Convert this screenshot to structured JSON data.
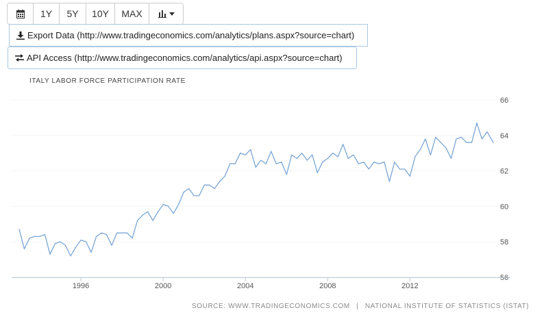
{
  "toolbar": {
    "calendar_icon": "calendar-icon",
    "periods": [
      "1Y",
      "5Y",
      "10Y",
      "MAX"
    ],
    "chart_type_icon": "bar-chart-icon",
    "dropdown_icon": "caret-down-icon"
  },
  "links": {
    "export_label": "Export Data (http://www.tradingeconomics.com/analytics/plans.aspx?source=chart)",
    "api_label": "API Access (http://www.tradingeconomics.com/analytics/api.aspx?source=chart)"
  },
  "footer": {
    "source_site": "SOURCE: WWW.TRADINGECONOMICS.COM",
    "separator": "|",
    "source_agency": "NATIONAL INSTITUTE OF STATISTICS (ISTAT)"
  },
  "colors": {
    "line": "#7aa6d6",
    "grid": "#dfe6ee",
    "axis": "#b8c6d4"
  },
  "chart_data": {
    "type": "line",
    "title": "ITALY LABOR FORCE PARTICIPATION RATE",
    "xlabel": "",
    "ylabel": "",
    "x_ticks": [
      "1996",
      "2000",
      "2004",
      "2008",
      "2012"
    ],
    "y_ticks": [
      56,
      58,
      60,
      62,
      64,
      66
    ],
    "ylim": [
      56,
      66
    ],
    "xlim": [
      1993.0,
      2016.05
    ],
    "y_axis_side": "right",
    "grid": "horizontal",
    "series": [
      {
        "values": [
          [
            1993.0,
            58.7
          ],
          [
            1993.25,
            57.6
          ],
          [
            1993.5,
            58.2
          ],
          [
            1993.75,
            58.3
          ],
          [
            1994.0,
            58.3
          ],
          [
            1994.25,
            58.4
          ],
          [
            1994.5,
            57.3
          ],
          [
            1994.75,
            57.9
          ],
          [
            1995.0,
            58.0
          ],
          [
            1995.25,
            57.8
          ],
          [
            1995.5,
            57.2
          ],
          [
            1995.75,
            57.7
          ],
          [
            1996.0,
            58.1
          ],
          [
            1996.25,
            58.0
          ],
          [
            1996.5,
            57.4
          ],
          [
            1996.75,
            58.3
          ],
          [
            1997.0,
            58.5
          ],
          [
            1997.25,
            58.4
          ],
          [
            1997.5,
            57.8
          ],
          [
            1997.75,
            58.5
          ],
          [
            1998.0,
            58.5
          ],
          [
            1998.25,
            58.5
          ],
          [
            1998.5,
            58.2
          ],
          [
            1998.75,
            59.2
          ],
          [
            1999.0,
            59.5
          ],
          [
            1999.25,
            59.7
          ],
          [
            1999.5,
            59.2
          ],
          [
            1999.75,
            59.7
          ],
          [
            2000.0,
            60.1
          ],
          [
            2000.25,
            60.0
          ],
          [
            2000.5,
            59.6
          ],
          [
            2000.75,
            60.1
          ],
          [
            2001.0,
            60.8
          ],
          [
            2001.25,
            61.0
          ],
          [
            2001.5,
            60.6
          ],
          [
            2001.75,
            60.6
          ],
          [
            2002.0,
            61.2
          ],
          [
            2002.25,
            61.2
          ],
          [
            2002.5,
            61.0
          ],
          [
            2002.75,
            61.4
          ],
          [
            2003.0,
            61.7
          ],
          [
            2003.25,
            62.4
          ],
          [
            2003.5,
            62.4
          ],
          [
            2003.75,
            63.0
          ],
          [
            2004.0,
            62.9
          ],
          [
            2004.25,
            63.2
          ],
          [
            2004.5,
            62.2
          ],
          [
            2004.75,
            62.6
          ],
          [
            2005.0,
            62.4
          ],
          [
            2005.25,
            63.1
          ],
          [
            2005.5,
            62.4
          ],
          [
            2005.75,
            62.5
          ],
          [
            2006.0,
            61.8
          ],
          [
            2006.25,
            62.9
          ],
          [
            2006.5,
            62.7
          ],
          [
            2006.75,
            63.0
          ],
          [
            2007.0,
            62.6
          ],
          [
            2007.25,
            62.9
          ],
          [
            2007.5,
            61.9
          ],
          [
            2007.75,
            62.5
          ],
          [
            2008.0,
            62.7
          ],
          [
            2008.25,
            63.0
          ],
          [
            2008.5,
            62.8
          ],
          [
            2008.75,
            63.5
          ],
          [
            2009.0,
            62.7
          ],
          [
            2009.25,
            62.9
          ],
          [
            2009.5,
            62.4
          ],
          [
            2009.75,
            62.5
          ],
          [
            2010.0,
            62.1
          ],
          [
            2010.25,
            62.5
          ],
          [
            2010.5,
            62.4
          ],
          [
            2010.75,
            62.5
          ],
          [
            2011.0,
            61.4
          ],
          [
            2011.25,
            62.5
          ],
          [
            2011.5,
            62.1
          ],
          [
            2011.75,
            62.1
          ],
          [
            2012.0,
            61.7
          ],
          [
            2012.25,
            62.8
          ],
          [
            2012.5,
            63.2
          ],
          [
            2012.75,
            63.8
          ],
          [
            2013.0,
            62.9
          ],
          [
            2013.25,
            63.9
          ],
          [
            2013.5,
            63.6
          ],
          [
            2013.75,
            63.3
          ],
          [
            2014.0,
            62.7
          ],
          [
            2014.25,
            63.8
          ],
          [
            2014.5,
            63.9
          ],
          [
            2014.75,
            63.6
          ],
          [
            2015.0,
            63.6
          ],
          [
            2015.25,
            64.7
          ],
          [
            2015.5,
            63.8
          ],
          [
            2015.75,
            64.2
          ],
          [
            2016.05,
            63.6
          ]
        ]
      }
    ]
  }
}
